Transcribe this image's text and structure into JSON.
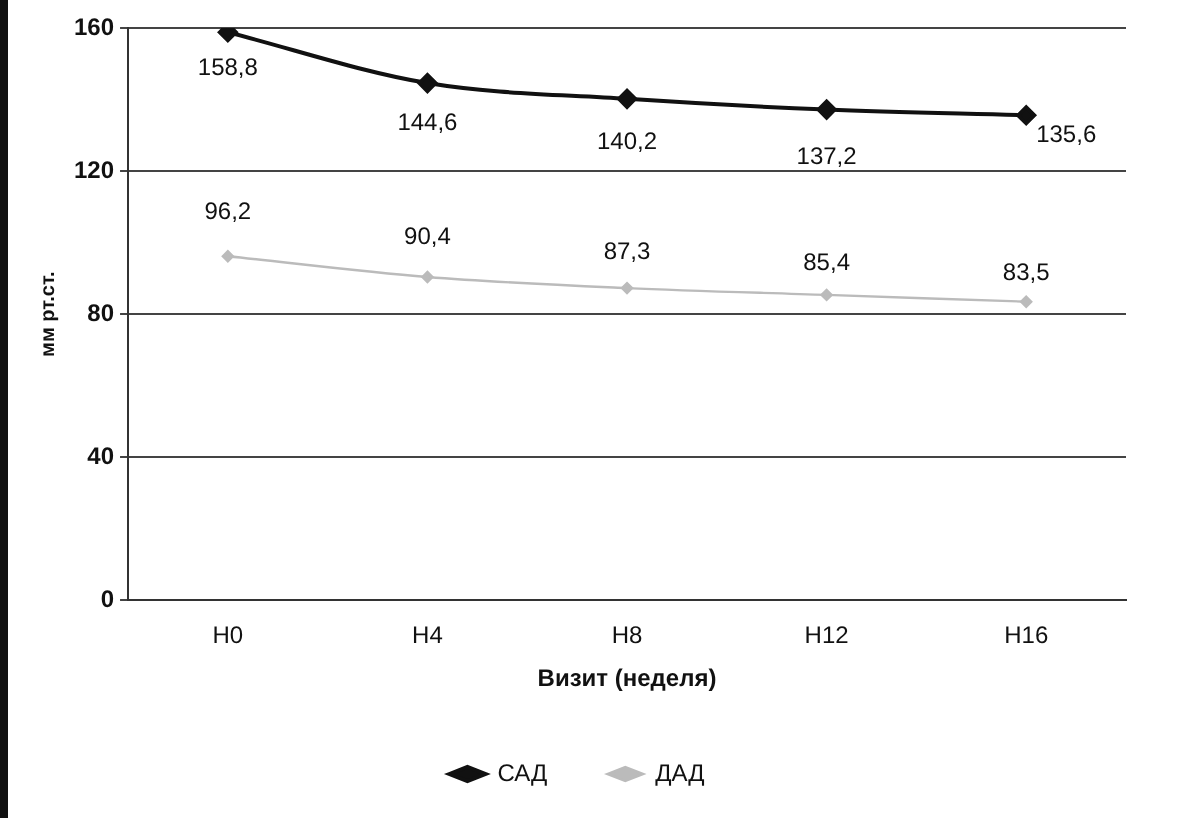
{
  "chart_data": {
    "type": "line",
    "xlabel": "Визит (неделя)",
    "ylabel": "мм рт.ст.",
    "categories": [
      "Н0",
      "Н4",
      "Н8",
      "Н12",
      "Н16"
    ],
    "series": [
      {
        "name": "САД",
        "color": "#111111",
        "values": [
          158.8,
          144.6,
          140.2,
          137.2,
          135.6
        ],
        "value_labels": [
          "158,8",
          "144,6",
          "140,2",
          "137,2",
          "135,6"
        ]
      },
      {
        "name": "ДАД",
        "color": "#bbbbbb",
        "values": [
          96.2,
          90.4,
          87.3,
          85.4,
          83.5
        ],
        "value_labels": [
          "96,2",
          "90,4",
          "87,3",
          "85,4",
          "83,5"
        ]
      }
    ],
    "ylim": [
      0,
      160
    ],
    "yticks": [
      0,
      40,
      80,
      120,
      160
    ],
    "grid": "y",
    "legend": "bottom",
    "marker": "diamond",
    "line_style": "solid"
  }
}
